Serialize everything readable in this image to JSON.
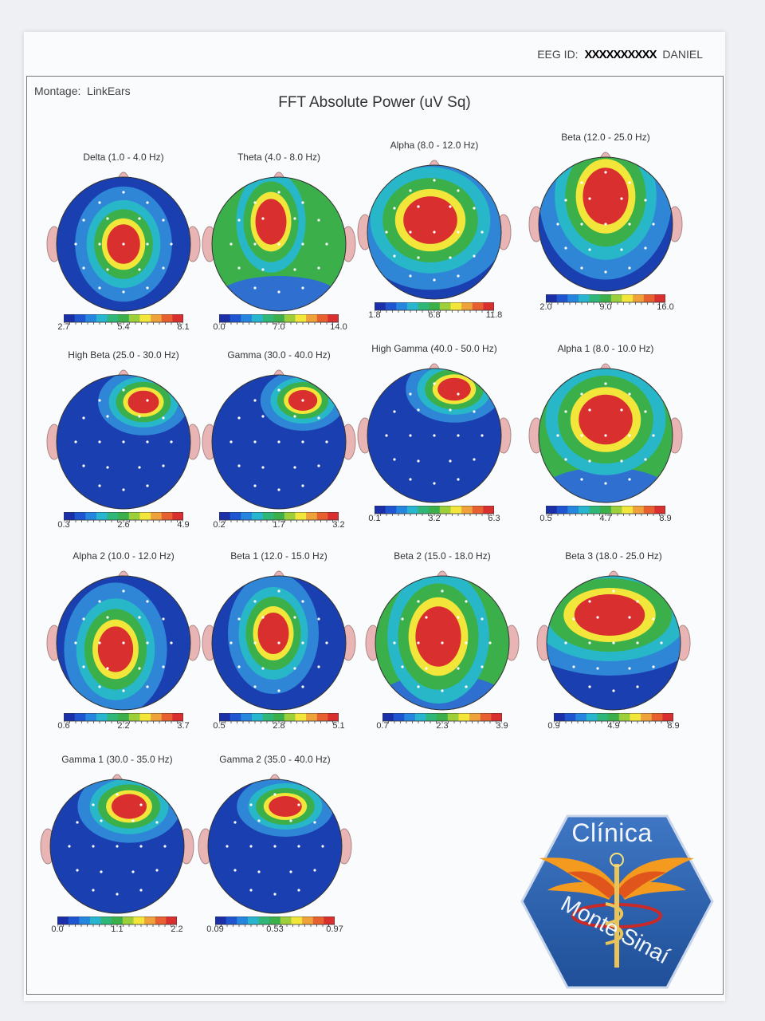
{
  "header": {
    "eeg_id_label": "EEG ID:",
    "eeg_id_redacted": "XXXXXXXXXX",
    "name_visible": "DANIEL",
    "montage_label": "Montage:",
    "montage_value": "LinkEars",
    "title": "FFT Absolute Power  (uV Sq)"
  },
  "maps": [
    {
      "title": "Delta (1.0 - 4.0 Hz)",
      "scale": [
        "2.7",
        "5.4",
        "8.1"
      ]
    },
    {
      "title": "Theta (4.0 - 8.0 Hz)",
      "scale": [
        "0.0",
        "7.0",
        "14.0"
      ]
    },
    {
      "title": "Alpha (8.0 - 12.0 Hz)",
      "scale": [
        "1.8",
        "6.8",
        "11.8"
      ]
    },
    {
      "title": "Beta (12.0 - 25.0 Hz)",
      "scale": [
        "2.0",
        "9.0",
        "16.0"
      ]
    },
    {
      "title": "High Beta (25.0 - 30.0 Hz)",
      "scale": [
        "0.3",
        "2.6",
        "4.9"
      ]
    },
    {
      "title": "Gamma (30.0 - 40.0 Hz)",
      "scale": [
        "0.2",
        "1.7",
        "3.2"
      ]
    },
    {
      "title": "High Gamma (40.0 - 50.0 Hz)",
      "scale": [
        "0.1",
        "3.2",
        "6.3"
      ]
    },
    {
      "title": "Alpha 1 (8.0 - 10.0 Hz)",
      "scale": [
        "0.5",
        "4.7",
        "8.9"
      ]
    },
    {
      "title": "Alpha 2 (10.0 - 12.0 Hz)",
      "scale": [
        "0.6",
        "2.2",
        "3.7"
      ]
    },
    {
      "title": "Beta 1 (12.0 - 15.0 Hz)",
      "scale": [
        "0.5",
        "2.8",
        "5.1"
      ]
    },
    {
      "title": "Beta 2 (15.0 - 18.0 Hz)",
      "scale": [
        "0.7",
        "2.3",
        "3.9"
      ]
    },
    {
      "title": "Beta 3 (18.0 - 25.0 Hz)",
      "scale": [
        "0.9",
        "4.9",
        "8.9"
      ]
    },
    {
      "title": "Gamma 1 (30.0 - 35.0 Hz)",
      "scale": [
        "0.0",
        "1.1",
        "2.2"
      ]
    },
    {
      "title": "Gamma 2 (35.0 - 40.0 Hz)",
      "scale": [
        "0.09",
        "0.53",
        "0.97"
      ]
    }
  ],
  "logo": {
    "top_text": "Clínica",
    "bottom_text": "Monte Sinaí"
  },
  "colors": {
    "low": "#1a3fb0",
    "mid": "#3bb04a",
    "yellow": "#f3e63a",
    "high": "#d92f2f",
    "ear": "#e8b4b4"
  }
}
